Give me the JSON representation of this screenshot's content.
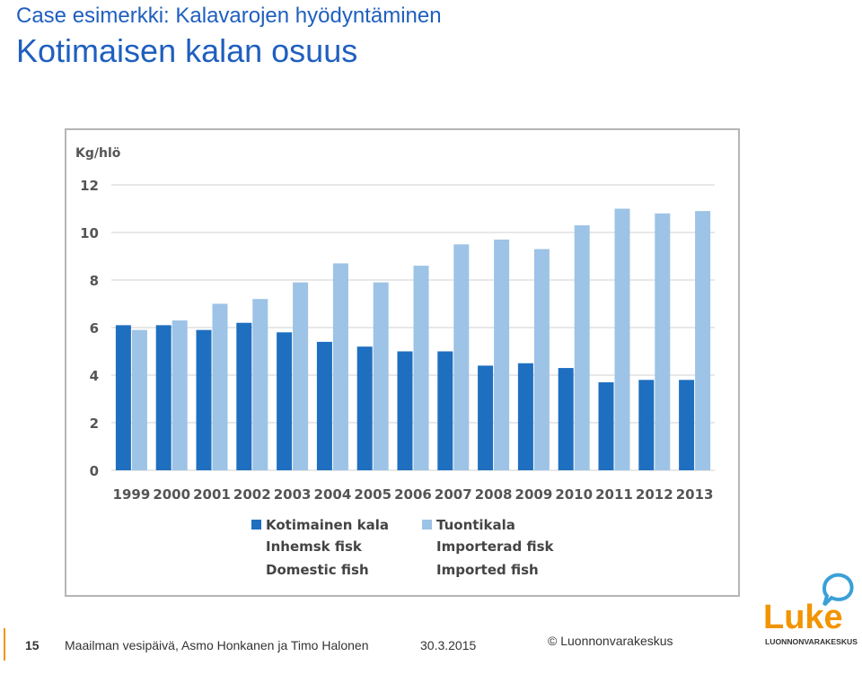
{
  "slide": {
    "subtitle": "Case esimerkki: Kalavarojen hyödyntäminen",
    "title": "Kotimaisen kalan osuus"
  },
  "footer": {
    "page_number": "15",
    "text": "Maailman vesipäivä, Asmo Honkanen ja Timo Halonen",
    "date": "30.3.2015",
    "copyright": "© Luonnonvarakeskus"
  },
  "logo": {
    "word": "Luke",
    "caption": "LUONNONVARAKESKUS"
  },
  "colors": {
    "title": "#1f5fbf",
    "domestic": "#1f6fc0",
    "imported": "#9dc3e6",
    "accent_orange": "#f29400",
    "logo_blue": "#3aa0d8"
  },
  "chart_data": {
    "type": "bar",
    "ylabel": "Kg/hlö",
    "ylim": [
      0,
      12
    ],
    "yticks": [
      0,
      2,
      4,
      6,
      8,
      10,
      12
    ],
    "grid": true,
    "categories": [
      "1999",
      "2000",
      "2001",
      "2002",
      "2003",
      "2004",
      "2005",
      "2006",
      "2007",
      "2008",
      "2009",
      "2010",
      "2011",
      "2012",
      "2013"
    ],
    "series": [
      {
        "name": "Kotimainen kala",
        "name_sv": "Inhemsk fisk",
        "name_en": "Domestic fish",
        "values": [
          6.1,
          6.1,
          5.9,
          6.2,
          5.8,
          5.4,
          5.2,
          5.0,
          5.0,
          4.4,
          4.5,
          4.3,
          3.7,
          3.8,
          3.8
        ]
      },
      {
        "name": "Tuontikala",
        "name_sv": "Importerad fisk",
        "name_en": "Imported fish",
        "values": [
          5.9,
          6.3,
          7.0,
          7.2,
          7.9,
          8.7,
          7.9,
          8.6,
          9.5,
          9.7,
          9.3,
          10.3,
          11.0,
          10.8,
          10.9
        ]
      }
    ],
    "legend_position": "bottom"
  }
}
